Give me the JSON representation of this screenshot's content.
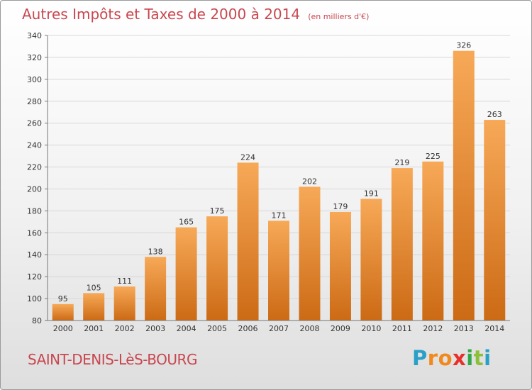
{
  "title": "Autres Impôts et Taxes de 2000 à 2014",
  "subtitle": "(en milliers d'€)",
  "commune": "SAINT-DENIS-LèS-BOURG",
  "logo": {
    "letters": [
      "P",
      "r",
      "o",
      "x",
      "i",
      "t",
      "i"
    ],
    "colors": [
      "#2aa0c8",
      "#f08a1e",
      "#f08a1e",
      "#e8302a",
      "#33a84a",
      "#8cc03c",
      "#2aa0c8"
    ]
  },
  "colors": {
    "bar_light": "#f7a957",
    "bar_dark": "#cc6a15",
    "title": "#c8474f",
    "grid": "#d7d7d7"
  },
  "chart_data": {
    "type": "bar",
    "categories": [
      "2000",
      "2001",
      "2002",
      "2003",
      "2004",
      "2005",
      "2006",
      "2007",
      "2008",
      "2009",
      "2010",
      "2011",
      "2012",
      "2013",
      "2014"
    ],
    "values": [
      95,
      105,
      111,
      138,
      165,
      175,
      224,
      171,
      202,
      179,
      191,
      219,
      225,
      326,
      263
    ],
    "ylim": [
      80,
      340
    ],
    "yticks": [
      80,
      100,
      120,
      140,
      160,
      180,
      200,
      220,
      240,
      260,
      280,
      300,
      320,
      340
    ],
    "grid": true,
    "data_labels": true
  }
}
